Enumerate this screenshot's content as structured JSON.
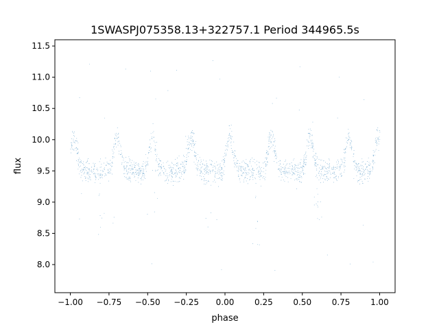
{
  "chart_data": {
    "type": "scatter",
    "title": "1SWASPJ075358.13+322757.1 Period 344965.5s",
    "xlabel": "phase",
    "ylabel": "flux",
    "xlim": [
      -1.1,
      1.1
    ],
    "ylim": [
      7.55,
      11.6
    ],
    "xticks": [
      -1.0,
      -0.75,
      -0.5,
      -0.25,
      0.0,
      0.25,
      0.5,
      0.75,
      1.0
    ],
    "xtick_labels": [
      "−1.00",
      "−0.75",
      "−0.50",
      "−0.25",
      "0.00",
      "0.25",
      "0.50",
      "0.75",
      "1.00"
    ],
    "yticks": [
      8.0,
      8.5,
      9.0,
      9.5,
      10.0,
      10.5,
      11.0,
      11.5
    ],
    "ytick_labels": [
      "8.0",
      "8.5",
      "9.0",
      "9.5",
      "10.0",
      "10.5",
      "11.0",
      "11.5"
    ],
    "grid": false,
    "series": [
      {
        "color": "#1f77b4",
        "x_range": [
          -1.0,
          1.0
        ],
        "base_flux": 9.5,
        "brightening_phases": [
          -0.98,
          -0.7,
          -0.47,
          -0.22,
          0.03,
          0.3,
          0.55,
          0.8,
          0.99
        ],
        "brightening_peak_flux": 10.05,
        "dimming_phases": [
          -0.8,
          -0.45,
          -0.1,
          0.2,
          0.6
        ],
        "dimming_min_flux": 8.3
      }
    ]
  }
}
